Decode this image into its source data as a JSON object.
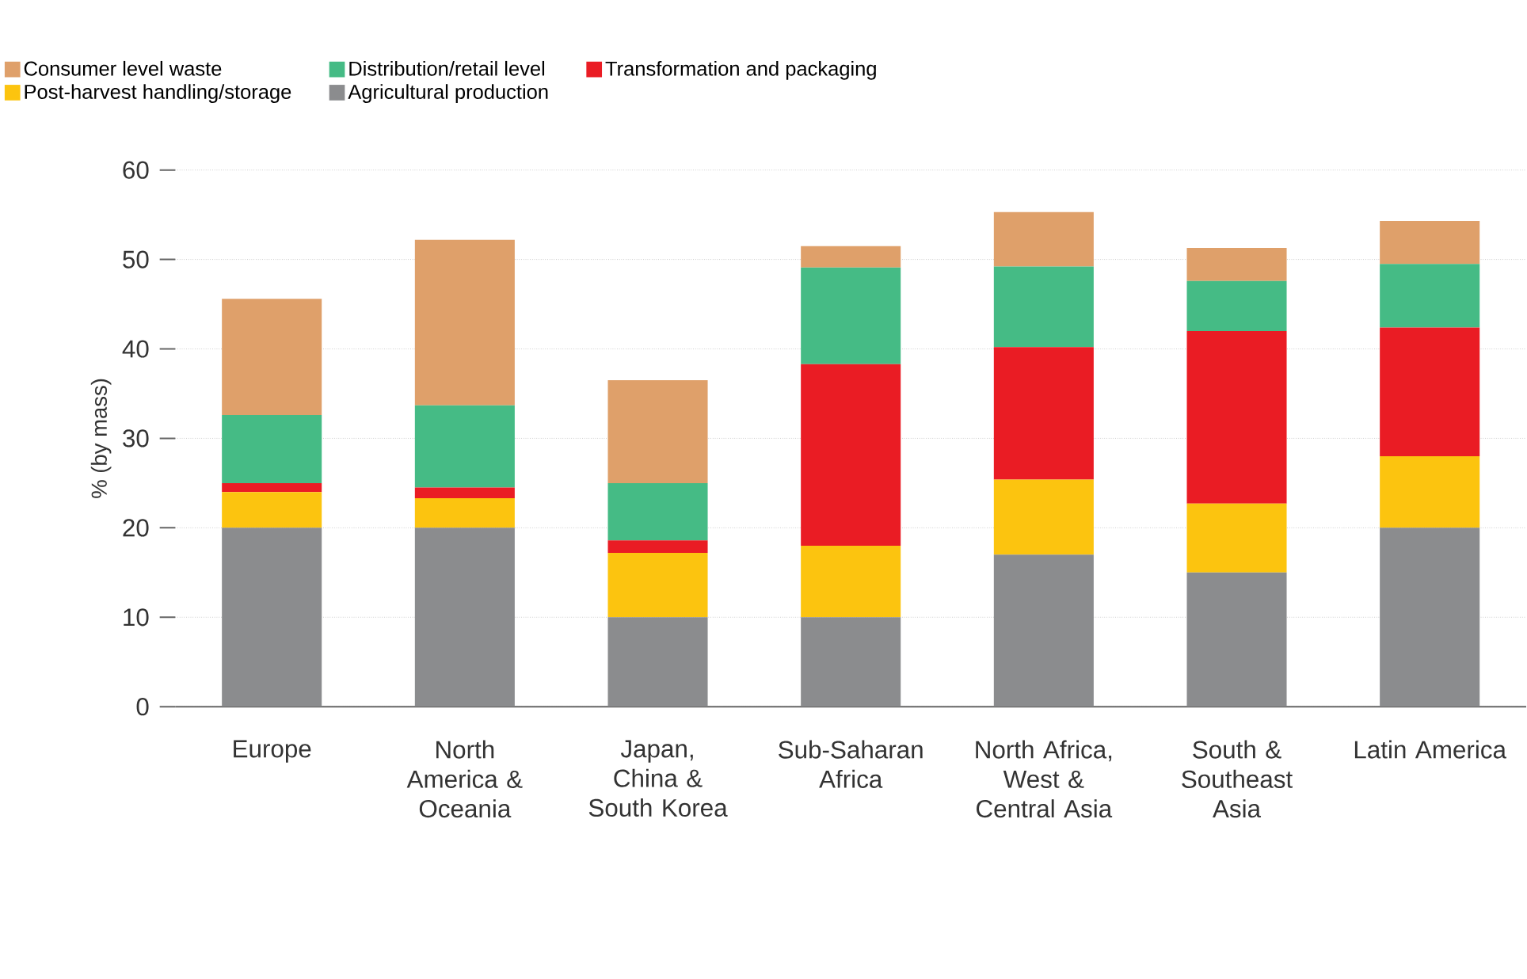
{
  "chart_data": {
    "type": "bar",
    "stacked": true,
    "ylabel": "% (by mass)",
    "categories": [
      "Europe",
      "North America & Oceania",
      "Japan, China & South Korea",
      "Sub-Saharan Africa",
      "North Africa, West & Central Asia",
      "South & Southeast Asia",
      "Latin America"
    ],
    "series": [
      {
        "name": "Agricultural production",
        "color": "#8b8c8e",
        "values": [
          20,
          20,
          10,
          10,
          17,
          15,
          20
        ]
      },
      {
        "name": "Post-harvest handling/storage",
        "color": "#fcc40f",
        "values": [
          4,
          3.3,
          7.2,
          8,
          8.4,
          7.7,
          8
        ]
      },
      {
        "name": "Transformation and packaging",
        "color": "#ea1c24",
        "values": [
          1,
          1.2,
          1.4,
          20.3,
          14.8,
          19.3,
          14.4
        ]
      },
      {
        "name": "Distribution/retail level",
        "color": "#45bb85",
        "values": [
          7.6,
          9.2,
          6.4,
          10.8,
          9,
          5.6,
          7.1
        ]
      },
      {
        "name": "Consumer level waste",
        "color": "#dfa06a",
        "values": [
          13,
          18.5,
          11.5,
          2.4,
          6.1,
          3.7,
          4.8
        ]
      }
    ],
    "ylim": [
      0,
      60
    ],
    "yticks": [
      0,
      10,
      20,
      30,
      40,
      50,
      60
    ],
    "grid": "y",
    "legend": "top"
  }
}
